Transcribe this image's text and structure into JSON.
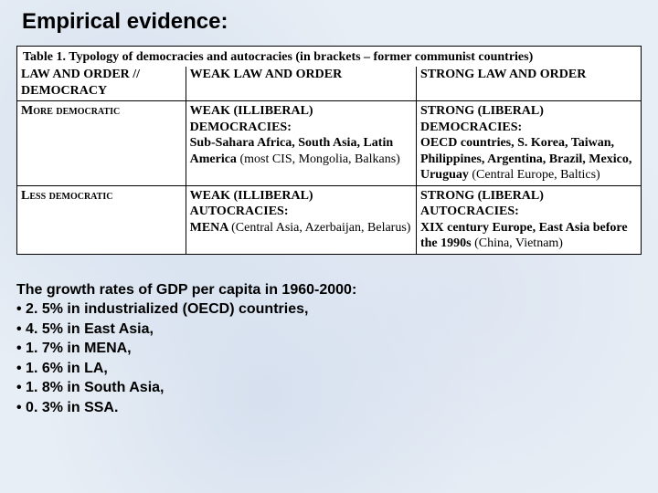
{
  "title": "Empirical evidence:",
  "table": {
    "caption": "Table 1. Typology of democracies and autocracies (in brackets – former communist countries)",
    "header": {
      "c1a": "LAW AND ORDER //",
      "c1b": "DEMOCRACY",
      "c2": "WEAK LAW AND ORDER",
      "c3": "STRONG LAW AND ORDER"
    },
    "row1": {
      "label": "More democratic",
      "c2_title": "WEAK (ILLIBERAL) DEMOCRACIES:",
      "c2_body_a": "Sub-Sahara Africa, South Asia, Latin America ",
      "c2_body_b": "(most CIS, Mongolia, Balkans)",
      "c3_title": "STRONG (LIBERAL) DEMOCRACIES:",
      "c3_body_a": "OECD countries, S. Korea, Taiwan, Philippines, Argentina, Brazil, Mexico, Uruguay ",
      "c3_body_b": "(Central Europe, Baltics)"
    },
    "row2": {
      "label": "Less democratic",
      "c2_title": "WEAK (ILLIBERAL) AUTOCRACIES:",
      "c2_body_a": "MENA ",
      "c2_body_b": "(Central Asia, Azerbaijan, Belarus)",
      "c3_title": "STRONG (LIBERAL) AUTOCRACIES:",
      "c3_body_a": "XIX century Europe, East Asia before the 1990s ",
      "c3_body_b": "(China, Vietnam)"
    }
  },
  "growth": {
    "heading": "The growth rates of GDP per capita in 1960-2000:",
    "items": [
      "• 2. 5% in industrialized (OECD) countries,",
      "• 4. 5% in East Asia,",
      "• 1. 7% in MENA,",
      "• 1. 6% in LA,",
      "• 1. 8% in South Asia,",
      "• 0. 3% in SSA."
    ]
  }
}
